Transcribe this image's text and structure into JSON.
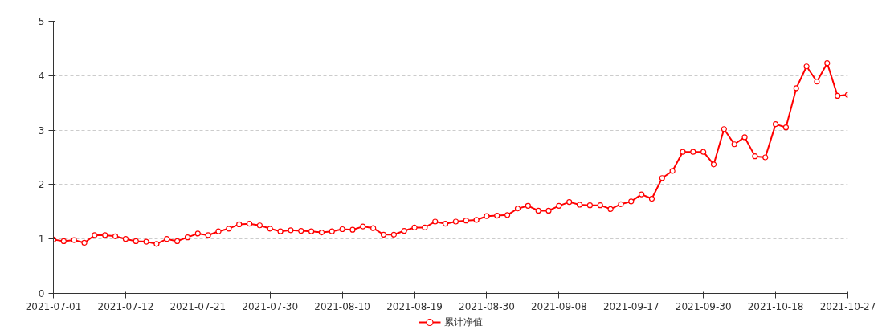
{
  "chart_data": {
    "type": "line",
    "categories": [
      "2021-07-01",
      null,
      null,
      null,
      null,
      null,
      null,
      "2021-07-12",
      null,
      null,
      null,
      null,
      null,
      null,
      "2021-07-21",
      null,
      null,
      null,
      null,
      null,
      null,
      "2021-07-30",
      null,
      null,
      null,
      null,
      null,
      null,
      "2021-08-10",
      null,
      null,
      null,
      null,
      null,
      null,
      "2021-08-19",
      null,
      null,
      null,
      null,
      null,
      null,
      "2021-08-30",
      null,
      null,
      null,
      null,
      null,
      null,
      "2021-09-08",
      null,
      null,
      null,
      null,
      null,
      null,
      "2021-09-17",
      null,
      null,
      null,
      null,
      null,
      null,
      "2021-09-30",
      null,
      null,
      null,
      null,
      null,
      null,
      "2021-10-18",
      null,
      null,
      null,
      null,
      null,
      null,
      "2021-10-27"
    ],
    "series": [
      {
        "name": "累计净值",
        "color": "#ff0000",
        "values": [
          0.99,
          0.96,
          0.98,
          0.93,
          1.07,
          1.07,
          1.05,
          1.0,
          0.96,
          0.95,
          0.91,
          1.0,
          0.96,
          1.03,
          1.1,
          1.07,
          1.14,
          1.19,
          1.27,
          1.28,
          1.25,
          1.19,
          1.14,
          1.16,
          1.15,
          1.14,
          1.12,
          1.14,
          1.18,
          1.17,
          1.23,
          1.2,
          1.08,
          1.08,
          1.15,
          1.21,
          1.21,
          1.32,
          1.28,
          1.32,
          1.34,
          1.35,
          1.42,
          1.43,
          1.44,
          1.56,
          1.61,
          1.52,
          1.52,
          1.61,
          1.68,
          1.63,
          1.62,
          1.62,
          1.55,
          1.64,
          1.69,
          1.82,
          1.74,
          2.12,
          2.25,
          2.6,
          2.6,
          2.6,
          2.37,
          3.02,
          2.74,
          2.87,
          2.52,
          2.5,
          3.11,
          3.05,
          3.77,
          4.17,
          3.89,
          4.23,
          3.63,
          3.65
        ]
      }
    ],
    "ylim": [
      0,
      5
    ],
    "yticks": [
      0,
      1,
      2,
      3,
      4,
      5
    ],
    "grid": "y",
    "legend": "bottom",
    "marker": "circle",
    "line_style": "solid"
  }
}
